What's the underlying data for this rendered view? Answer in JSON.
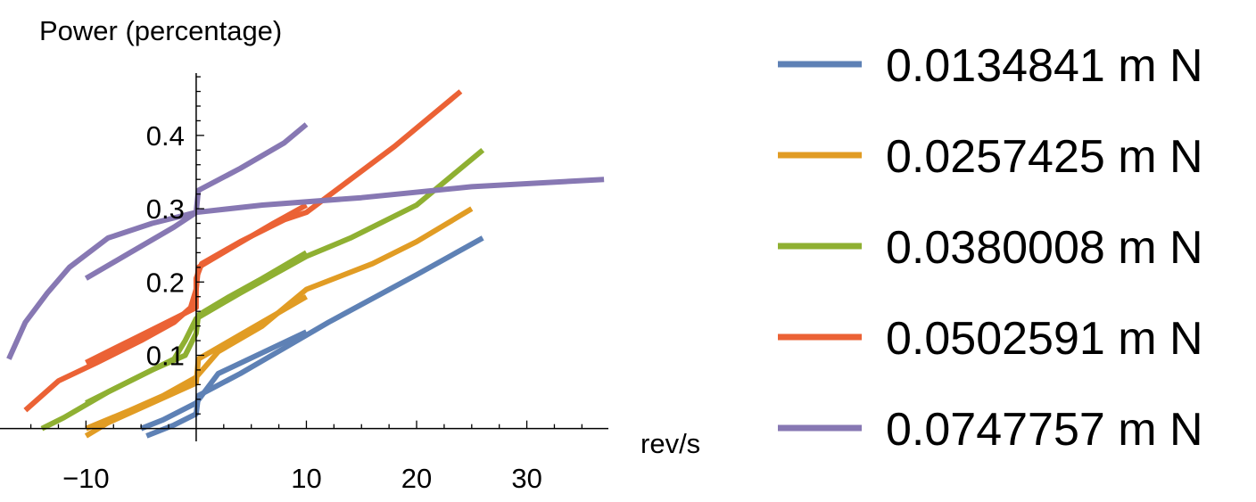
{
  "chart_data": {
    "type": "line",
    "xlabel": "rev/s",
    "ylabel": "Power (percentage)",
    "xlim": [
      -17.8,
      37.4
    ],
    "ylim": [
      -0.015,
      0.485
    ],
    "x_ticks": [
      {
        "value": -10,
        "label": "−10"
      },
      {
        "value": 10,
        "label": "10"
      },
      {
        "value": 20,
        "label": "20"
      },
      {
        "value": 30,
        "label": "30"
      }
    ],
    "y_ticks": [
      {
        "value": 0.1,
        "label": "0.1"
      },
      {
        "value": 0.2,
        "label": "0.2"
      },
      {
        "value": 0.3,
        "label": "0.3"
      },
      {
        "value": 0.4,
        "label": "0.4"
      }
    ],
    "series": [
      {
        "name": "0.0134841 m N",
        "color": "#5e81b5",
        "segments": [
          [
            [
              -5,
              0.0
            ],
            [
              -3,
              0.012
            ],
            [
              0,
              0.035
            ],
            [
              2,
              0.075
            ],
            [
              10,
              0.132
            ]
          ],
          [
            [
              -4.5,
              -0.01
            ],
            [
              -2,
              0.005
            ],
            [
              0,
              0.02
            ],
            [
              0.2,
              0.045
            ],
            [
              4,
              0.075
            ],
            [
              8,
              0.11
            ],
            [
              12,
              0.145
            ],
            [
              20,
              0.21
            ],
            [
              26,
              0.26
            ]
          ]
        ]
      },
      {
        "name": "0.0257425 m N",
        "color": "#e19c24",
        "segments": [
          [
            [
              -10,
              -0.01
            ],
            [
              -8,
              0.008
            ],
            [
              -4,
              0.035
            ],
            [
              0,
              0.062
            ],
            [
              0.2,
              0.095
            ],
            [
              4,
              0.128
            ],
            [
              10,
              0.18
            ]
          ],
          [
            [
              -10,
              0.0
            ],
            [
              -6,
              0.025
            ],
            [
              -3,
              0.045
            ],
            [
              0,
              0.07
            ],
            [
              2,
              0.105
            ],
            [
              6,
              0.14
            ],
            [
              10,
              0.19
            ],
            [
              16,
              0.225
            ],
            [
              20,
              0.255
            ],
            [
              25,
              0.3
            ]
          ]
        ]
      },
      {
        "name": "0.0380008 m N",
        "color": "#8fb032",
        "segments": [
          [
            [
              -14,
              0.0
            ],
            [
              -12,
              0.015
            ],
            [
              -8,
              0.05
            ],
            [
              -4,
              0.08
            ],
            [
              -1,
              0.1
            ],
            [
              0,
              0.13
            ],
            [
              0.2,
              0.155
            ],
            [
              3,
              0.18
            ],
            [
              6,
              0.205
            ],
            [
              10,
              0.24
            ]
          ],
          [
            [
              -10,
              0.035
            ],
            [
              -6,
              0.065
            ],
            [
              -2,
              0.095
            ],
            [
              -1,
              0.12
            ],
            [
              0,
              0.15
            ],
            [
              4,
              0.185
            ],
            [
              10,
              0.235
            ],
            [
              14,
              0.26
            ],
            [
              20,
              0.305
            ],
            [
              26,
              0.38
            ]
          ]
        ]
      },
      {
        "name": "0.0502591 m N",
        "color": "#eb6235",
        "segments": [
          [
            [
              -15.5,
              0.025
            ],
            [
              -12.5,
              0.065
            ],
            [
              -9,
              0.09
            ],
            [
              -5,
              0.12
            ],
            [
              -2,
              0.145
            ],
            [
              -0.5,
              0.165
            ],
            [
              0,
              0.19
            ],
            [
              0.2,
              0.22
            ],
            [
              3,
              0.245
            ],
            [
              7,
              0.28
            ],
            [
              10,
              0.305
            ]
          ],
          [
            [
              -10,
              0.09
            ],
            [
              -6,
              0.12
            ],
            [
              -2,
              0.15
            ],
            [
              0,
              0.165
            ],
            [
              0,
              0.205
            ],
            [
              0.5,
              0.225
            ],
            [
              4,
              0.255
            ],
            [
              8,
              0.285
            ],
            [
              10,
              0.295
            ],
            [
              14,
              0.34
            ],
            [
              18,
              0.385
            ],
            [
              24,
              0.46
            ]
          ]
        ]
      },
      {
        "name": "0.0747757 m N",
        "color": "#8778b3",
        "segments": [
          [
            [
              -17,
              0.095
            ],
            [
              -15.5,
              0.145
            ],
            [
              -13.5,
              0.185
            ],
            [
              -11.5,
              0.22
            ],
            [
              -8,
              0.26
            ],
            [
              -4,
              0.28
            ],
            [
              0,
              0.295
            ],
            [
              0.2,
              0.325
            ],
            [
              4,
              0.355
            ],
            [
              8,
              0.39
            ],
            [
              10,
              0.415
            ]
          ],
          [
            [
              -10,
              0.205
            ],
            [
              -6,
              0.24
            ],
            [
              -2,
              0.275
            ],
            [
              0,
              0.295
            ],
            [
              6,
              0.305
            ],
            [
              15,
              0.315
            ],
            [
              25,
              0.33
            ],
            [
              37,
              0.34
            ]
          ]
        ]
      }
    ]
  },
  "legend": {
    "entries": [
      "0.0134841 m N",
      "0.0257425 m N",
      "0.0380008 m N",
      "0.0502591 m N",
      "0.0747757 m N"
    ]
  }
}
